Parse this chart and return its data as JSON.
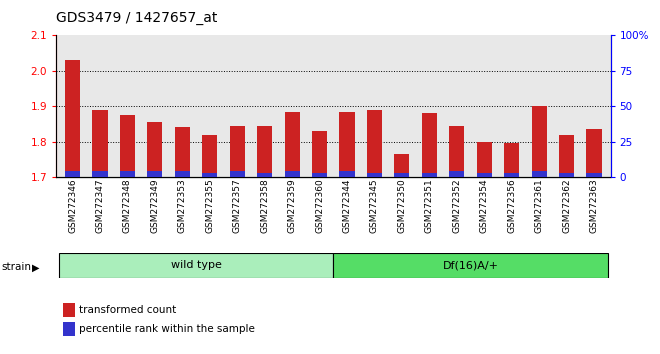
{
  "title": "GDS3479 / 1427657_at",
  "categories": [
    "GSM272346",
    "GSM272347",
    "GSM272348",
    "GSM272349",
    "GSM272353",
    "GSM272355",
    "GSM272357",
    "GSM272358",
    "GSM272359",
    "GSM272360",
    "GSM272344",
    "GSM272345",
    "GSM272350",
    "GSM272351",
    "GSM272352",
    "GSM272354",
    "GSM272356",
    "GSM272361",
    "GSM272362",
    "GSM272363"
  ],
  "red_values": [
    2.03,
    1.89,
    1.875,
    1.855,
    1.84,
    1.82,
    1.845,
    1.845,
    1.885,
    1.83,
    1.885,
    1.89,
    1.765,
    1.88,
    1.845,
    1.8,
    1.795,
    1.9,
    1.82,
    1.835
  ],
  "blue_values": [
    4,
    4,
    4,
    4,
    4,
    3,
    4,
    3,
    4,
    3,
    4,
    3,
    3,
    3,
    4,
    3,
    3,
    4,
    3,
    3
  ],
  "ylim_left": [
    1.7,
    2.1
  ],
  "ylim_right": [
    0,
    100
  ],
  "yticks_left": [
    1.7,
    1.8,
    1.9,
    2.0,
    2.1
  ],
  "yticks_right": [
    0,
    25,
    50,
    75,
    100
  ],
  "bar_color_red": "#cc2222",
  "bar_color_blue": "#3333cc",
  "bg_color": "#e8e8e8",
  "legend_red": "transformed count",
  "legend_blue": "percentile rank within the sample",
  "bar_width": 0.55,
  "base_value": 1.7,
  "wt_color": "#aaeebb",
  "df_color": "#55dd66",
  "wt_count": 10,
  "df_count": 10
}
